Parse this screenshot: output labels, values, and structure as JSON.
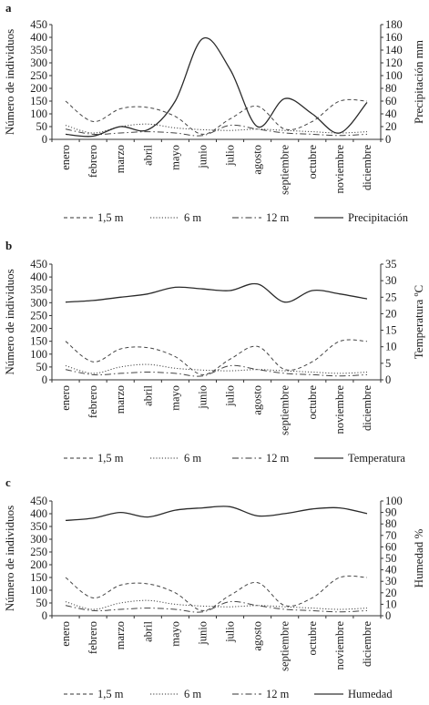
{
  "chart_data": [
    {
      "panel_label": "a",
      "type": "line",
      "categories": [
        "enero",
        "febrero",
        "marzo",
        "abril",
        "mayo",
        "junio",
        "julio",
        "agosto",
        "septiembre",
        "octubre",
        "noviembre",
        "diciembre"
      ],
      "ylabel": "Número de individuos",
      "ylim": [
        0,
        450
      ],
      "yticks": [
        "0",
        "50",
        "100",
        "150",
        "200",
        "250",
        "300",
        "350",
        "400",
        "450"
      ],
      "y2label": "Precipitación mm",
      "y2lim": [
        0,
        180
      ],
      "y2ticks": [
        "0",
        "20",
        "40",
        "60",
        "80",
        "100",
        "120",
        "140",
        "160",
        "180"
      ],
      "series": [
        {
          "name": "1,5 m",
          "axis": "left",
          "style": "dashed",
          "values": [
            150,
            70,
            120,
            125,
            90,
            20,
            80,
            130,
            40,
            70,
            150,
            150
          ]
        },
        {
          "name": "6 m",
          "axis": "left",
          "style": "dotted",
          "values": [
            55,
            25,
            50,
            60,
            45,
            38,
            35,
            40,
            35,
            30,
            25,
            30
          ]
        },
        {
          "name": "12 m",
          "axis": "left",
          "style": "dashdot",
          "values": [
            40,
            20,
            25,
            30,
            25,
            15,
            55,
            40,
            25,
            20,
            15,
            20
          ]
        },
        {
          "name": "Precipitación",
          "axis": "right",
          "style": "solid",
          "values": [
            8,
            5,
            20,
            15,
            60,
            158,
            110,
            20,
            64,
            40,
            10,
            58
          ]
        }
      ],
      "legend_position": "bottom"
    },
    {
      "panel_label": "b",
      "type": "line",
      "categories": [
        "enero",
        "febrero",
        "marzo",
        "abril",
        "mayo",
        "junio",
        "julio",
        "agosto",
        "septiembre",
        "octubre",
        "noviembre",
        "diciembre"
      ],
      "ylabel": "Número de individuos",
      "ylim": [
        0,
        450
      ],
      "yticks": [
        "0",
        "50",
        "100",
        "150",
        "200",
        "250",
        "300",
        "350",
        "400",
        "450"
      ],
      "y2label": "Temperatura ºC",
      "y2lim": [
        0,
        35
      ],
      "y2ticks": [
        "0",
        "5",
        "10",
        "15",
        "20",
        "25",
        "30",
        "35"
      ],
      "series": [
        {
          "name": "1,5 m",
          "axis": "left",
          "style": "dashed",
          "values": [
            150,
            70,
            120,
            125,
            90,
            20,
            80,
            130,
            40,
            70,
            150,
            150
          ]
        },
        {
          "name": "6 m",
          "axis": "left",
          "style": "dotted",
          "values": [
            55,
            25,
            50,
            60,
            45,
            38,
            35,
            40,
            35,
            30,
            25,
            30
          ]
        },
        {
          "name": "12 m",
          "axis": "left",
          "style": "dashdot",
          "values": [
            40,
            20,
            25,
            30,
            25,
            15,
            55,
            40,
            25,
            20,
            15,
            20
          ]
        },
        {
          "name": "Temperatura",
          "axis": "right",
          "style": "solid",
          "values": [
            23.5,
            24,
            25,
            26,
            28,
            27.5,
            27,
            29,
            23.5,
            27,
            26,
            24.5
          ]
        }
      ],
      "legend_position": "bottom"
    },
    {
      "panel_label": "c",
      "type": "line",
      "categories": [
        "enero",
        "febrero",
        "marzo",
        "abril",
        "mayo",
        "junio",
        "julio",
        "agosto",
        "septiembre",
        "octubre",
        "noviembre",
        "diciembre"
      ],
      "ylabel": "Número de individuos",
      "ylim": [
        0,
        450
      ],
      "yticks": [
        "0",
        "50",
        "100",
        "150",
        "200",
        "250",
        "300",
        "350",
        "400",
        "450"
      ],
      "y2label": "Humedad %",
      "y2lim": [
        0,
        100
      ],
      "y2ticks": [
        "0",
        "10",
        "20",
        "30",
        "40",
        "50",
        "60",
        "70",
        "80",
        "90",
        "100"
      ],
      "series": [
        {
          "name": "1,5 m",
          "axis": "left",
          "style": "dashed",
          "values": [
            150,
            70,
            120,
            125,
            90,
            20,
            80,
            130,
            40,
            70,
            150,
            150
          ]
        },
        {
          "name": "6 m",
          "axis": "left",
          "style": "dotted",
          "values": [
            55,
            25,
            50,
            60,
            45,
            38,
            35,
            40,
            35,
            30,
            25,
            30
          ]
        },
        {
          "name": "12 m",
          "axis": "left",
          "style": "dashdot",
          "values": [
            40,
            20,
            25,
            30,
            25,
            15,
            55,
            40,
            25,
            20,
            15,
            20
          ]
        },
        {
          "name": "Humedad",
          "axis": "right",
          "style": "solid",
          "values": [
            83,
            85,
            90,
            86,
            92,
            94,
            95,
            87,
            89,
            93,
            94,
            89
          ]
        }
      ],
      "legend_position": "bottom"
    }
  ]
}
